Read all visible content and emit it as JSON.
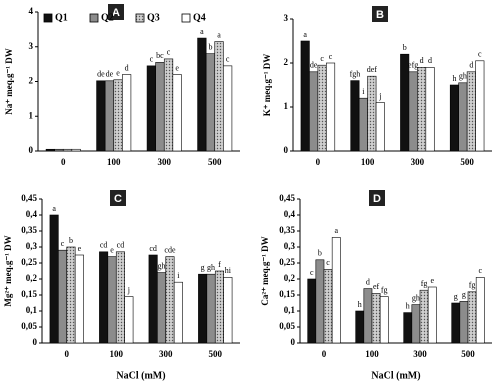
{
  "chart_data": [
    {
      "type": "bar",
      "title": "A",
      "y_label": "Na⁺ meq.g⁻¹ DW",
      "categories": [
        "0",
        "100",
        "300",
        "500"
      ],
      "ylim": [
        0,
        4
      ],
      "yticks": [
        0,
        1,
        2,
        3,
        4
      ],
      "legend": "top-left",
      "series": [
        {
          "name": "Q1",
          "color": "#111111",
          "values": [
            0.05,
            2.02,
            2.45,
            3.25
          ],
          "letters": [
            null,
            "de",
            "c",
            "a"
          ]
        },
        {
          "name": "Q2",
          "color": "#8c8c8c",
          "values": [
            0.05,
            2.02,
            2.55,
            2.8
          ],
          "letters": [
            null,
            "de",
            "bc",
            "b"
          ]
        },
        {
          "name": "Q3",
          "color": "#cfcfcf",
          "values": [
            0.05,
            2.05,
            2.65,
            3.15
          ],
          "letters": [
            null,
            "e",
            "c",
            "a"
          ]
        },
        {
          "name": "Q4",
          "color": "#ffffff",
          "values": [
            0.05,
            2.2,
            2.2,
            2.45
          ],
          "letters": [
            null,
            "d",
            "e",
            "c"
          ]
        }
      ]
    },
    {
      "type": "bar",
      "title": "B",
      "y_label": "K⁺ meq.g⁻¹ DW",
      "categories": [
        "0",
        "100",
        "300",
        "500"
      ],
      "ylim": [
        0,
        3
      ],
      "yticks": [
        0,
        1,
        2,
        3
      ],
      "series": [
        {
          "color": "#111111",
          "values": [
            2.5,
            1.6,
            2.2,
            1.5
          ],
          "letters": [
            "a",
            "fgh",
            "b",
            "h"
          ]
        },
        {
          "color": "#8c8c8c",
          "values": [
            1.8,
            1.2,
            1.8,
            1.55
          ],
          "letters": [
            "de",
            "i",
            "efg",
            "gh"
          ]
        },
        {
          "color": "#cfcfcf",
          "values": [
            1.95,
            1.7,
            1.9,
            1.8
          ],
          "letters": [
            "c",
            "def",
            "d",
            "d"
          ]
        },
        {
          "color": "#ffffff",
          "values": [
            2.0,
            1.1,
            1.9,
            2.05
          ],
          "letters": [
            "c",
            "j",
            "d",
            "c"
          ]
        }
      ]
    },
    {
      "type": "bar",
      "title": "C",
      "y_label": "Mg²⁺ meq.g⁻¹ DW",
      "x_label": "NaCl (mM)",
      "categories": [
        "0",
        "100",
        "300",
        "500"
      ],
      "ylim": [
        0,
        0.45
      ],
      "yticks": [
        0,
        {
          "value": 0.05,
          "label": "0,05"
        },
        {
          "value": 0.1,
          "label": "0,1"
        },
        {
          "value": 0.15,
          "label": "0,15"
        },
        {
          "value": 0.2,
          "label": "0,2"
        },
        {
          "value": 0.25,
          "label": "0,25"
        },
        {
          "value": 0.3,
          "label": "0,3"
        },
        {
          "value": 0.35,
          "label": "0,35"
        },
        {
          "value": 0.4,
          "label": "0,4"
        },
        {
          "value": 0.45,
          "label": "0,45"
        }
      ],
      "series": [
        {
          "color": "#111111",
          "values": [
            0.4,
            0.285,
            0.275,
            0.215
          ],
          "letters": [
            "a",
            "cd",
            "cd",
            "g"
          ]
        },
        {
          "color": "#8c8c8c",
          "values": [
            0.29,
            0.27,
            0.22,
            0.215
          ],
          "letters": [
            "c",
            "e",
            "gh",
            "gh"
          ]
        },
        {
          "color": "#cfcfcf",
          "values": [
            0.3,
            0.285,
            0.27,
            0.225
          ],
          "letters": [
            "b",
            "cd",
            "cde",
            "f"
          ]
        },
        {
          "color": "#ffffff",
          "values": [
            0.275,
            0.145,
            0.19,
            0.205
          ],
          "letters": [
            "e",
            "j",
            "i",
            "hi"
          ]
        }
      ]
    },
    {
      "type": "bar",
      "title": "D",
      "y_label": "Ca²⁺ meq.g⁻¹ DW",
      "x_label": "NaCl (mM)",
      "categories": [
        "0",
        "100",
        "300",
        "500"
      ],
      "ylim": [
        0,
        0.45
      ],
      "yticks": [
        0,
        {
          "value": 0.05,
          "label": "0,05"
        },
        {
          "value": 0.1,
          "label": "0,1"
        },
        {
          "value": 0.15,
          "label": "0,15"
        },
        {
          "value": 0.2,
          "label": "0,2"
        },
        {
          "value": 0.25,
          "label": "0,25"
        },
        {
          "value": 0.3,
          "label": "0,3"
        },
        {
          "value": 0.35,
          "label": "0,35"
        },
        {
          "value": 0.4,
          "label": "0,4"
        },
        {
          "value": 0.45,
          "label": "0,45"
        }
      ],
      "series": [
        {
          "color": "#111111",
          "values": [
            0.2,
            0.1,
            0.095,
            0.125
          ],
          "letters": [
            "c",
            "h",
            "h",
            "g"
          ]
        },
        {
          "color": "#8c8c8c",
          "values": [
            0.26,
            0.17,
            0.12,
            0.13
          ],
          "letters": [
            "b",
            "d",
            "gh",
            "g"
          ]
        },
        {
          "color": "#cfcfcf",
          "values": [
            0.23,
            0.155,
            0.165,
            0.16
          ],
          "letters": [
            "c",
            "ef",
            "fg",
            "fg"
          ]
        },
        {
          "color": "#ffffff",
          "values": [
            0.33,
            0.145,
            0.175,
            0.205
          ],
          "letters": [
            "a",
            "fg",
            "e",
            "c"
          ]
        }
      ]
    }
  ]
}
